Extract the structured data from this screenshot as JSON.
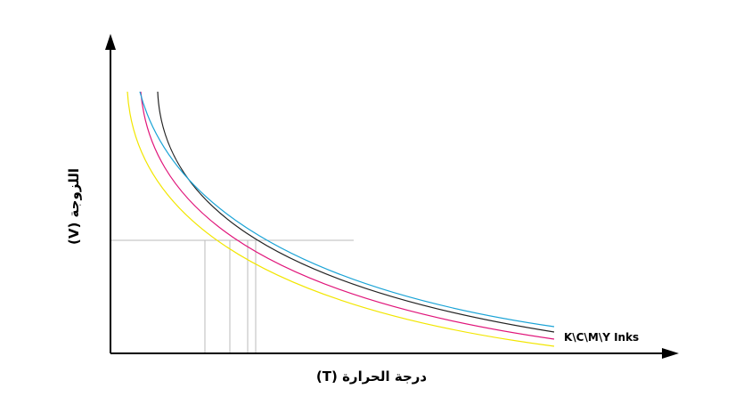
{
  "y_axis_label": "اللزوجة (V)",
  "x_axis_label": "درجة الحرارة (T)",
  "curve_label": "K\\C\\M\\Y Inks"
}
